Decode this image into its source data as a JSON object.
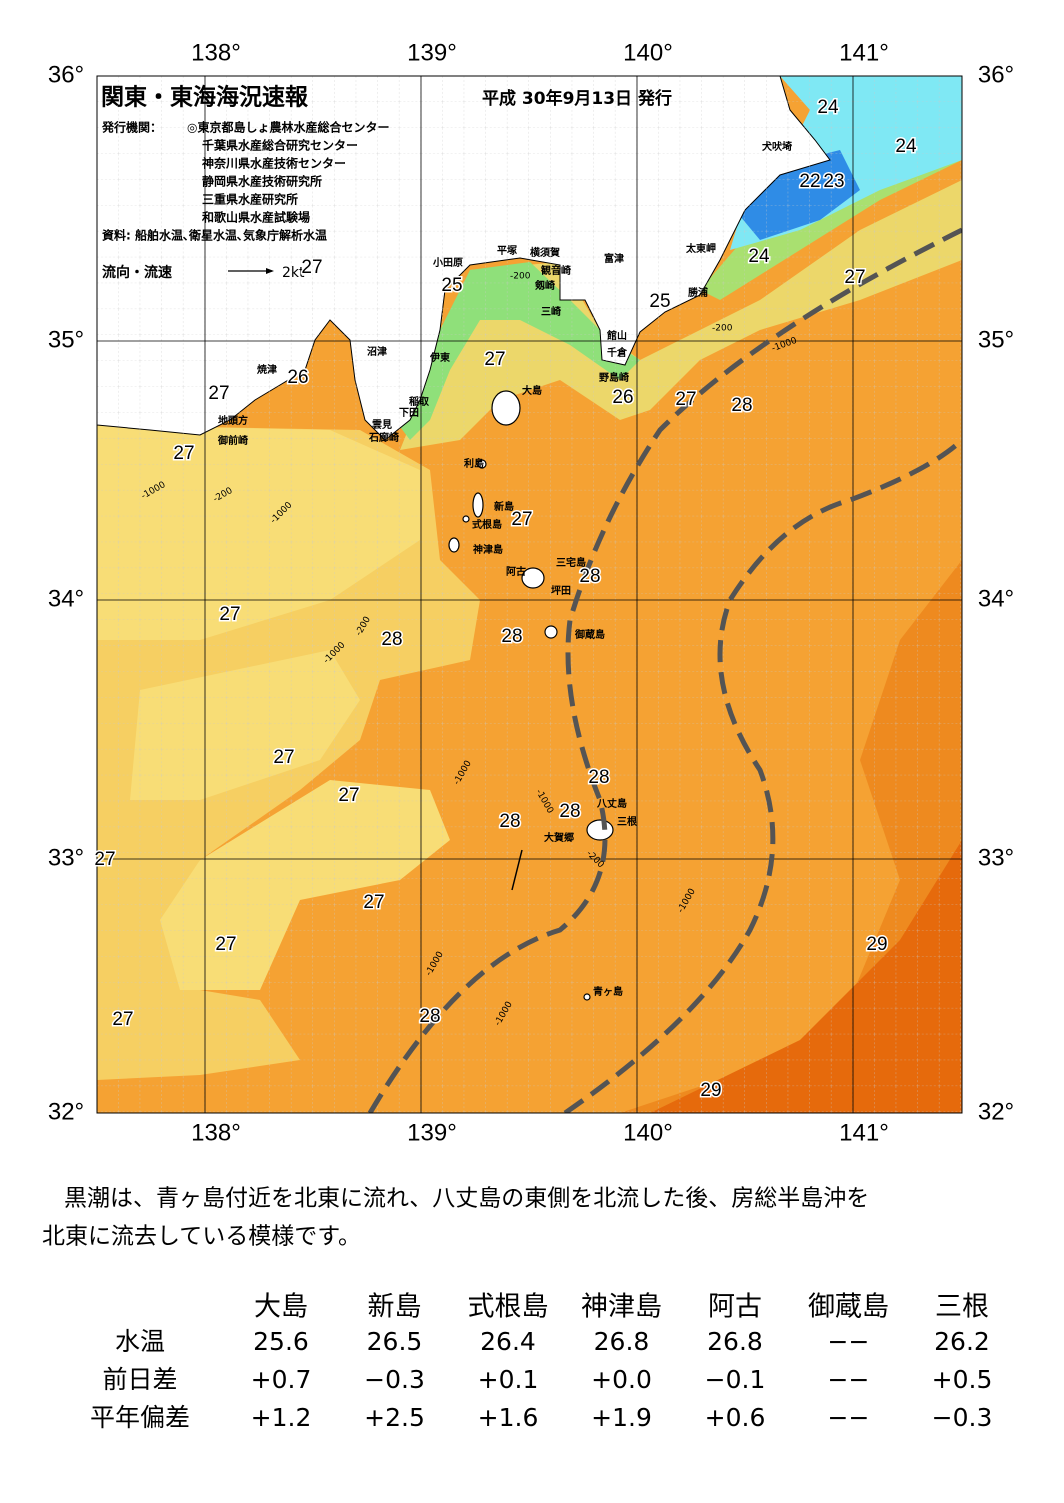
{
  "header": {
    "title": "関東・東海海況速報",
    "issue_date": "平成 30年9月13日 発行",
    "issuer_label": "発行機関：",
    "issuers": [
      "◎東京都島しょ農林水産総合センター",
      "千葉県水産総合研究センター",
      "神奈川県水産技術センター",
      "静岡県水産技術研究所",
      "三重県水産研究所",
      "和歌山県水産試験場"
    ],
    "sources": "資料: 船舶水温､衛星水温､気象庁解析水温",
    "legend": "流向・流速",
    "legend_scale": "2kt"
  },
  "map": {
    "longitudes": [
      "138°",
      "139°",
      "140°",
      "141°"
    ],
    "latitudes": [
      "36°",
      "35°",
      "34°",
      "33°",
      "32°"
    ],
    "places": [
      "犬吠埼",
      "太東岬",
      "勝浦",
      "富津",
      "横須賀",
      "平塚",
      "観音崎",
      "剱崎",
      "三崎",
      "館山",
      "千倉",
      "野島崎",
      "小田原",
      "沼津",
      "伊東",
      "焼津",
      "稲取",
      "下田",
      "雲見",
      "石廊崎",
      "地頭方",
      "御前崎",
      "大島",
      "利島",
      "新島",
      "式根島",
      "神津島",
      "三宅島",
      "阿古",
      "坪田",
      "御蔵島",
      "八丈島",
      "三根",
      "大賀郷",
      "青ヶ島"
    ],
    "temperature_labels": [
      24,
      24,
      22,
      23,
      24,
      27,
      25,
      25,
      27,
      26,
      27,
      27,
      26,
      27,
      28,
      27,
      27,
      28,
      27,
      28,
      28,
      27,
      28,
      27,
      28,
      28,
      27,
      27,
      29,
      27,
      27,
      28,
      29
    ],
    "depth_labels": [
      -1000,
      -200,
      -1000,
      -200,
      -1000,
      -1000,
      -1000,
      -200,
      -1000,
      -1000,
      -1000,
      -200,
      -1000,
      -200
    ]
  },
  "summary": [
    "黒潮は、青ヶ島付近を北東に流れ、八丈島の東側を北流した後、房総半島沖を",
    "北東に流去している模様です。"
  ],
  "table": {
    "columns": [
      "大島",
      "新島",
      "式根島",
      "神津島",
      "阿古",
      "御蔵島",
      "三根"
    ],
    "rows": [
      {
        "label": "水温",
        "values": [
          "25.6",
          "26.5",
          "26.4",
          "26.8",
          "26.8",
          "−−",
          "26.2"
        ]
      },
      {
        "label": "前日差",
        "values": [
          "+0.7",
          "−0.3",
          "+0.1",
          "+0.0",
          "−0.1",
          "−−",
          "+0.5"
        ]
      },
      {
        "label": "平年偏差",
        "values": [
          "+1.2",
          "+2.5",
          "+1.6",
          "+1.9",
          "+0.6",
          "−−",
          "−0.3"
        ]
      }
    ]
  }
}
